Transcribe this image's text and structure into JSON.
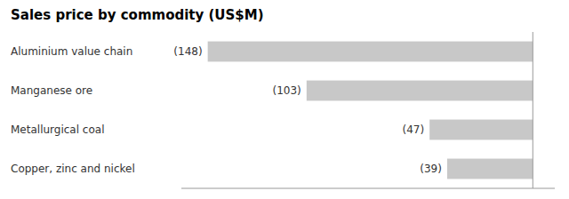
{
  "chart_data": {
    "type": "bar",
    "orientation": "horizontal",
    "title": "Sales price by commodity (US$M)",
    "categories": [
      "Copper, zinc and nickel",
      "Metallurgical coal",
      "Manganese ore",
      "Aluminium value chain"
    ],
    "values": [
      -39,
      -47,
      -103,
      -148
    ],
    "value_labels": [
      "(39)",
      "(47)",
      "(103)",
      "(148)"
    ],
    "data_labels": true,
    "color": "#c8c8c8",
    "xlim": [
      -160,
      10
    ],
    "tick_labels": false,
    "grid": false
  }
}
